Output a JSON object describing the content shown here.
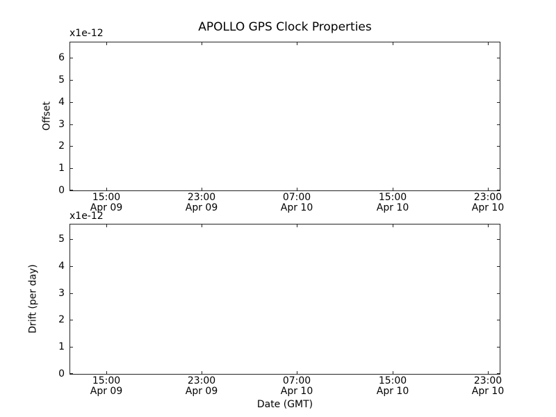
{
  "figure": {
    "title": "APOLLO GPS Clock Properties",
    "background_color": "#ffffff",
    "frame_color": "#222222",
    "text_color": "#000000"
  },
  "chart_data": [
    {
      "type": "line",
      "subplot": "top",
      "title": "APOLLO GPS Clock Properties",
      "ylabel": "Offset",
      "y_offset_text": "x1e-12",
      "yticks": [
        0,
        1,
        2,
        3,
        4,
        5,
        6
      ],
      "ylim": [
        0,
        6.7
      ],
      "xlim_hours": [
        0,
        36
      ],
      "xticks": [
        {
          "hour": 3,
          "time": "15:00",
          "date": "Apr 09"
        },
        {
          "hour": 11,
          "time": "23:00",
          "date": "Apr 09"
        },
        {
          "hour": 19,
          "time": "07:00",
          "date": "Apr 10"
        },
        {
          "hour": 27,
          "time": "15:00",
          "date": "Apr 10"
        },
        {
          "hour": 35,
          "time": "23:00",
          "date": "Apr 10"
        }
      ],
      "series": [],
      "grid": false,
      "legend": null
    },
    {
      "type": "line",
      "subplot": "bottom",
      "xlabel": "Date (GMT)",
      "ylabel": "Drift (per day)",
      "y_offset_text": "x1e-12",
      "yticks": [
        0,
        1,
        2,
        3,
        4,
        5
      ],
      "ylim": [
        0,
        5.54
      ],
      "xlim_hours": [
        0,
        36
      ],
      "xticks": [
        {
          "hour": 3,
          "time": "15:00",
          "date": "Apr 09"
        },
        {
          "hour": 11,
          "time": "23:00",
          "date": "Apr 09"
        },
        {
          "hour": 19,
          "time": "07:00",
          "date": "Apr 10"
        },
        {
          "hour": 27,
          "time": "15:00",
          "date": "Apr 10"
        },
        {
          "hour": 35,
          "time": "23:00",
          "date": "Apr 10"
        }
      ],
      "series": [],
      "grid": false,
      "legend": null
    }
  ]
}
